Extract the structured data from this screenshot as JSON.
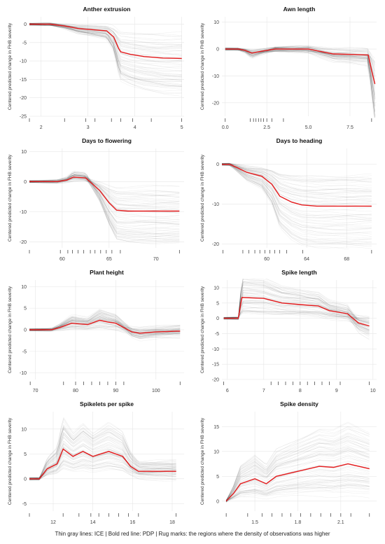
{
  "caption": "Thin gray lines: ICE | Bold red line: PDP | Rug marks: the regions where the density of observations was higher",
  "colors": {
    "pdp": "#e41a1c",
    "ice": "#000000",
    "rug": "#333333",
    "grid": "#e6e6e6"
  },
  "chart_data": [
    {
      "type": "line",
      "title": "Anther extrusion",
      "ylabel": "Centered predicted change in FHB severity",
      "xlabel": "",
      "xlim": [
        1.75,
        5.05
      ],
      "ylim": [
        -25,
        2
      ],
      "xticks": [
        2,
        3,
        4,
        5
      ],
      "yticks": [
        -25,
        -20,
        -15,
        -10,
        -5,
        0
      ],
      "pdp": {
        "x": [
          1.75,
          2.2,
          2.5,
          2.8,
          3.1,
          3.4,
          3.55,
          3.65,
          3.7,
          3.9,
          4.2,
          4.6,
          5.0
        ],
        "y": [
          0,
          0,
          -0.5,
          -1.2,
          -1.5,
          -1.8,
          -3.5,
          -6.5,
          -7.5,
          -8.2,
          -8.8,
          -9.2,
          -9.3
        ]
      },
      "rug": [
        1.75,
        2.5,
        2.95,
        3.15,
        3.5,
        3.7,
        3.95,
        4.35,
        5.0
      ]
    },
    {
      "type": "line",
      "title": "Awn length",
      "ylabel": "Centered predicted change in FHB severity",
      "xlabel": "",
      "xlim": [
        -0.2,
        9.1
      ],
      "ylim": [
        -25,
        12
      ],
      "xticks": [
        0.0,
        2.5,
        5.0,
        7.5
      ],
      "yticks": [
        -20,
        -10,
        0,
        10
      ],
      "pdp": {
        "x": [
          0,
          0.8,
          1.2,
          1.6,
          2.2,
          3,
          5,
          6.5,
          8.6,
          8.8,
          9.0
        ],
        "y": [
          0,
          0,
          -0.5,
          -1.5,
          -0.8,
          0,
          0,
          -1.8,
          -2.2,
          -8,
          -13
        ]
      },
      "rug": [
        0,
        1.5,
        1.7,
        1.85,
        2.0,
        2.15,
        2.3,
        2.5,
        2.8,
        3.5,
        8.8
      ]
    },
    {
      "type": "line",
      "title": "Days to flowering",
      "ylabel": "Centered predicted change in FHB severity",
      "xlabel": "",
      "xlim": [
        56.5,
        73
      ],
      "ylim": [
        -22,
        11
      ],
      "xticks": [
        60,
        65,
        70
      ],
      "yticks": [
        -20,
        -10,
        0,
        10
      ],
      "pdp": {
        "x": [
          56.5,
          59.5,
          60.5,
          61.2,
          62.5,
          63.3,
          64,
          65,
          65.8,
          67,
          69,
          72.5
        ],
        "y": [
          0,
          0,
          0.5,
          1.5,
          1.2,
          -1,
          -3,
          -7,
          -9.5,
          -9.8,
          -9.8,
          -9.8
        ]
      },
      "rug": [
        56.5,
        59.8,
        60.6,
        61.1,
        61.7,
        62.3,
        63.0,
        63.5,
        64.1,
        64.7,
        65.3,
        66.2,
        72.5
      ]
    },
    {
      "type": "line",
      "title": "Days to heading",
      "ylabel": "Centered predicted change in FHB severity",
      "xlabel": "",
      "xlim": [
        55.5,
        71
      ],
      "ylim": [
        -21,
        4
      ],
      "xticks": [
        60,
        64,
        68
      ],
      "yticks": [
        -20,
        -10,
        0
      ],
      "pdp": {
        "x": [
          55.5,
          56.3,
          57,
          58,
          59.5,
          60.5,
          61.3,
          62.5,
          63.5,
          65,
          70.5
        ],
        "y": [
          0,
          0,
          -0.8,
          -2,
          -3,
          -5,
          -8,
          -9.5,
          -10.2,
          -10.5,
          -10.5
        ]
      },
      "rug": [
        55.6,
        57.6,
        58.2,
        58.8,
        59.3,
        59.8,
        60.3,
        60.8,
        61.3,
        62.0,
        63.6,
        70.5
      ]
    },
    {
      "type": "line",
      "title": "Plant height",
      "ylabel": "Centered predicted change in FHB severity",
      "xlabel": "",
      "xlim": [
        68.5,
        107
      ],
      "ylim": [
        -11.5,
        11.5
      ],
      "xticks": [
        70,
        80,
        90,
        100
      ],
      "yticks": [
        -10,
        -5,
        0,
        5,
        10
      ],
      "pdp": {
        "x": [
          68.5,
          74,
          76,
          79,
          83,
          86,
          88,
          90,
          92,
          94,
          96,
          100,
          106
        ],
        "y": [
          0,
          0,
          0.5,
          1.5,
          1.2,
          2.2,
          1.8,
          1.5,
          0.5,
          -0.5,
          -0.8,
          -0.5,
          -0.3
        ]
      },
      "rug": [
        68.7,
        77.0,
        80.0,
        82.0,
        84.0,
        86.0,
        88.0,
        90.0,
        92.0,
        106.0
      ]
    },
    {
      "type": "line",
      "title": "Spike length",
      "ylabel": "Centered predicted change in FHB severity",
      "xlabel": "",
      "xlim": [
        5.85,
        10.1
      ],
      "ylim": [
        -20,
        12.5
      ],
      "xticks": [
        6,
        7,
        8,
        9,
        10
      ],
      "yticks": [
        -20,
        -15,
        -10,
        -5,
        0,
        5,
        10
      ],
      "pdp": {
        "x": [
          5.9,
          6.3,
          6.4,
          7,
          7.5,
          8,
          8.5,
          8.8,
          9.3,
          9.6,
          9.9
        ],
        "y": [
          0,
          0,
          6.8,
          6.5,
          5,
          4.5,
          4,
          2.5,
          1.5,
          -1.5,
          -2.5
        ]
      },
      "rug": [
        5.9,
        7.2,
        7.4,
        7.6,
        7.8,
        8.0,
        8.2,
        8.4,
        8.6,
        8.8,
        9.1,
        9.9
      ]
    },
    {
      "type": "line",
      "title": "Spikelets per spike",
      "ylabel": "Centered predicted change in FHB severity",
      "xlabel": "",
      "xlim": [
        10.8,
        18.6
      ],
      "ylim": [
        -6.5,
        13.5
      ],
      "xticks": [
        12,
        14,
        16,
        18
      ],
      "yticks": [
        -5,
        0,
        5,
        10
      ],
      "pdp": {
        "x": [
          10.8,
          11.3,
          11.7,
          12.2,
          12.5,
          13,
          13.5,
          14,
          14.8,
          15.5,
          15.9,
          16.3,
          18.2
        ],
        "y": [
          0,
          0,
          2,
          3,
          6,
          4.5,
          5.5,
          4.5,
          5.5,
          4.5,
          2.5,
          1.5,
          1.5
        ]
      },
      "rug": [
        10.8,
        12.5,
        13.3,
        13.9,
        14.3,
        14.8,
        15.3,
        15.8,
        16.3,
        18.2
      ]
    },
    {
      "type": "line",
      "title": "Spike density",
      "ylabel": "Centered predicted change in FHB severity",
      "xlabel": "",
      "xlim": [
        1.27,
        2.35
      ],
      "ylim": [
        -2,
        18
      ],
      "xticks": [
        1.5,
        1.8,
        2.1
      ],
      "yticks": [
        0,
        5,
        10,
        15
      ],
      "pdp": {
        "x": [
          1.3,
          1.35,
          1.4,
          1.5,
          1.58,
          1.65,
          1.8,
          1.95,
          2.05,
          2.15,
          2.3
        ],
        "y": [
          0,
          1.5,
          3.5,
          4.5,
          3.5,
          5,
          6,
          7,
          6.8,
          7.5,
          6.5
        ]
      },
      "rug": [
        1.3,
        1.45,
        1.55,
        1.62,
        1.69,
        1.75,
        1.82,
        1.89,
        1.96,
        2.03,
        2.1,
        2.17,
        2.3
      ]
    }
  ]
}
